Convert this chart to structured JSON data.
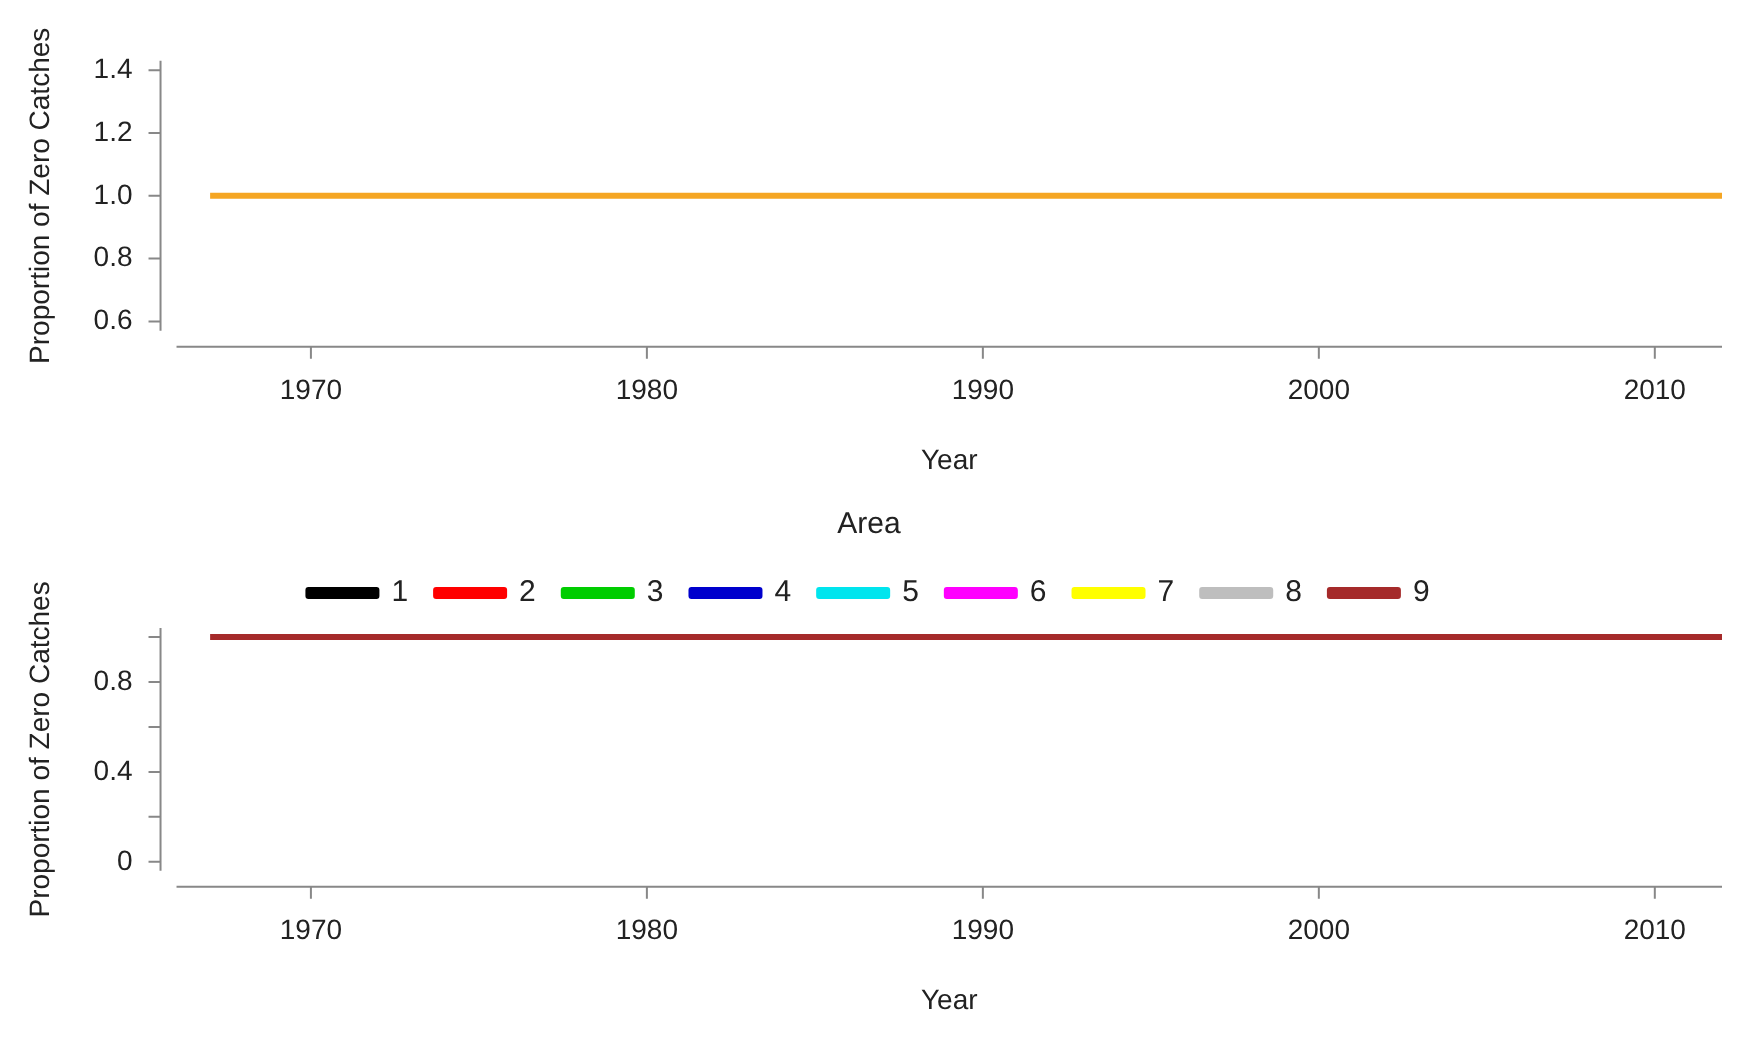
{
  "chart_data": [
    {
      "type": "line",
      "xlabel": "Year",
      "ylabel": "Proportion of Zero Catches",
      "xlim": [
        1966,
        2012
      ],
      "xticks": [
        1970,
        1980,
        1990,
        2000,
        2010
      ],
      "ylim": [
        0.57,
        1.43
      ],
      "yticks": [
        0.6,
        0.8,
        {
          "value": 1,
          "label": "1.0"
        },
        1.2,
        1.4
      ],
      "legend": false,
      "series": [
        {
          "color": "#f5a623",
          "x": [
            1967,
            2012
          ],
          "values": [
            1,
            1
          ]
        }
      ]
    },
    {
      "type": "line",
      "xlabel": "Year",
      "ylabel": "Proportion of Zero Catches",
      "legend_title": "Area",
      "legend": "top",
      "xlim": [
        1966,
        2012
      ],
      "xticks": [
        1970,
        1980,
        1990,
        2000,
        2010
      ],
      "ylim": [
        -0.04,
        1.04
      ],
      "yticks": [
        0,
        {
          "value": 0.2,
          "label": null
        },
        0.4,
        {
          "value": 0.6,
          "label": null
        },
        0.8,
        {
          "value": 1,
          "label": null
        }
      ],
      "x": [
        1967,
        2012
      ],
      "series": [
        {
          "name": "1",
          "color": "#000000",
          "values": [
            null,
            null
          ]
        },
        {
          "name": "2",
          "color": "#ff0000",
          "values": [
            null,
            null
          ]
        },
        {
          "name": "3",
          "color": "#00cd00",
          "values": [
            null,
            null
          ]
        },
        {
          "name": "4",
          "color": "#0000cd",
          "values": [
            null,
            null
          ]
        },
        {
          "name": "5",
          "color": "#00e5ee",
          "values": [
            null,
            null
          ]
        },
        {
          "name": "6",
          "color": "#ff00ff",
          "values": [
            null,
            null
          ]
        },
        {
          "name": "7",
          "color": "#ffff00",
          "values": [
            null,
            null
          ]
        },
        {
          "name": "8",
          "color": "#bebebe",
          "values": [
            null,
            null
          ]
        },
        {
          "name": "9",
          "color": "#a52a2a",
          "values": [
            1,
            1
          ]
        }
      ]
    }
  ]
}
